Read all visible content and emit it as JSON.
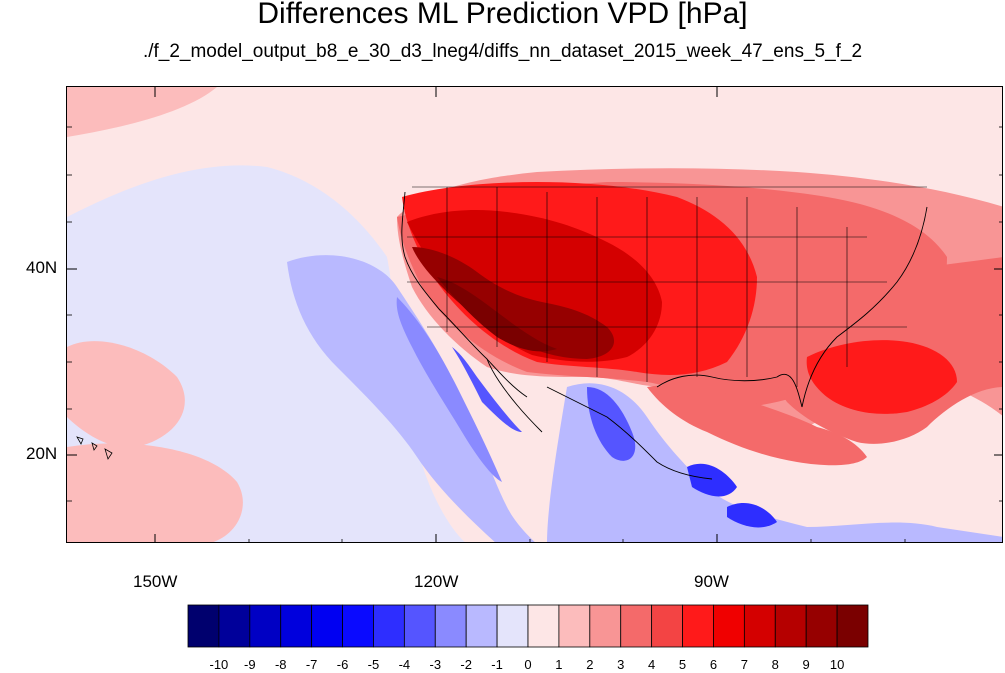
{
  "header": {
    "title": "Differences ML Prediction VPD [hPa]",
    "subtitle": "./f_2_model_output_b8_e_30_d3_lneg4/diffs_nn_dataset_2015_week_47_ens_5_f_2"
  },
  "axes": {
    "lon_labels": [
      "150W",
      "120W",
      "90W"
    ],
    "lat_labels": [
      "40N",
      "20N"
    ]
  },
  "colorbar": {
    "labels": [
      "-10",
      "-9",
      "-8",
      "-7",
      "-6",
      "-5",
      "-4",
      "-3",
      "-2",
      "-1",
      "0",
      "1",
      "2",
      "3",
      "4",
      "5",
      "6",
      "7",
      "8",
      "9",
      "10"
    ],
    "colors": [
      "#00006e",
      "#00009a",
      "#0000c4",
      "#0000dd",
      "#0000f2",
      "#0a0aff",
      "#2e2eff",
      "#5555ff",
      "#8a8aff",
      "#b9b9ff",
      "#e4e4fb",
      "#fde6e6",
      "#fcbcbc",
      "#f89595",
      "#f46a6a",
      "#f34444",
      "#ff1a1a",
      "#f00000",
      "#d40000",
      "#b50000",
      "#960000",
      "#7a0000"
    ]
  },
  "map": {
    "projection": "equirectangular",
    "lon_range": [
      -160,
      -60
    ],
    "lat_range": [
      10,
      58
    ],
    "field": "VPD difference",
    "units": "hPa"
  }
}
